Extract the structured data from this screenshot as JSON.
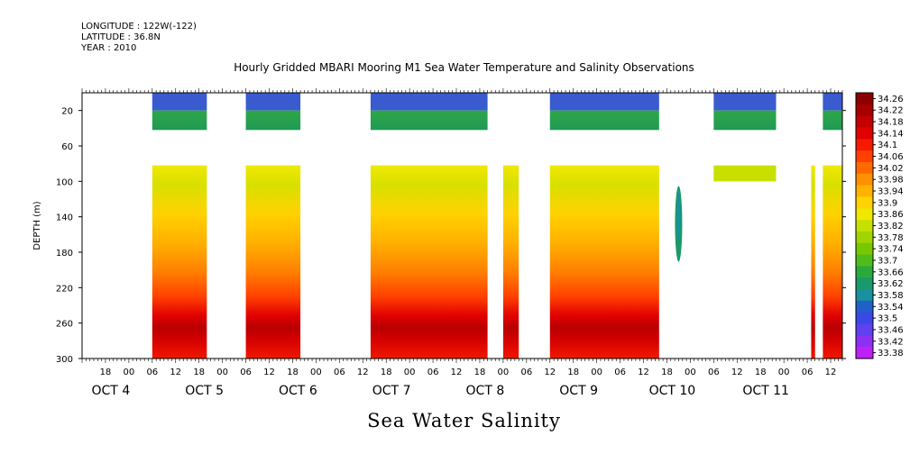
{
  "header": {
    "longitude": "LONGITUDE : 122W(-122)",
    "latitude": "LATITUDE : 36.8N",
    "year": "YEAR : 2010"
  },
  "chart_data": {
    "type": "heatmap",
    "title": "Hourly Gridded MBARI Mooring M1 Sea Water Temperature and Salinity Observations",
    "xlabel": "Sea Water Salinity",
    "ylabel": "DEPTH (m)",
    "y_range": [
      300,
      0
    ],
    "y_ticks": [
      20,
      60,
      100,
      140,
      180,
      220,
      260,
      300
    ],
    "x_range_hours": [
      "OCT 3 12:00",
      "OCT 11 15:00"
    ],
    "hour_tick_labels": [
      "18",
      "00",
      "06",
      "12",
      "18",
      "00",
      "06",
      "12",
      "18",
      "00",
      "06",
      "12",
      "18",
      "00",
      "06",
      "12",
      "18",
      "00",
      "06",
      "12",
      "18",
      "00",
      "06",
      "12",
      "18",
      "00",
      "06",
      "12",
      "18",
      "00",
      "06",
      "12"
    ],
    "day_labels": [
      "OCT 4",
      "OCT 5",
      "OCT 6",
      "OCT 7",
      "OCT 8",
      "OCT 9",
      "OCT 10",
      "OCT 11"
    ],
    "colorbar": {
      "levels": [
        34.26,
        34.22,
        34.18,
        34.14,
        34.1,
        34.06,
        34.02,
        33.98,
        33.94,
        33.9,
        33.86,
        33.82,
        33.78,
        33.74,
        33.7,
        33.66,
        33.62,
        33.58,
        33.54,
        33.5,
        33.46,
        33.42,
        33.38
      ],
      "colors": [
        "#8c0000",
        "#a80000",
        "#c40000",
        "#e00000",
        "#f51a00",
        "#ff4000",
        "#ff6a00",
        "#ff9000",
        "#ffb300",
        "#ffd200",
        "#f0e800",
        "#c8e000",
        "#a0d400",
        "#78c800",
        "#50bc1c",
        "#2aaa3c",
        "#1a9a6a",
        "#1890a0",
        "#2060c8",
        "#3a48e6",
        "#6040f0",
        "#8e30f4",
        "#c020f8"
      ]
    },
    "segments_hours": [
      {
        "start": 18,
        "end": 32,
        "top": "surface",
        "deep": true
      },
      {
        "start": 42,
        "end": 56,
        "top": "surface",
        "deep": true
      },
      {
        "start": 74,
        "end": 104,
        "top": "surface",
        "deep": true
      },
      {
        "start": 108,
        "end": 112,
        "top": "none",
        "deep": true
      },
      {
        "start": 120,
        "end": 148,
        "top": "surface",
        "deep": true
      },
      {
        "start": 162,
        "end": 178,
        "top": "surface",
        "deep": false
      },
      {
        "start": 187,
        "end": 188,
        "top": "none",
        "deep": true
      },
      {
        "start": 190,
        "end": 201,
        "top": "surface",
        "deep": true
      }
    ]
  }
}
